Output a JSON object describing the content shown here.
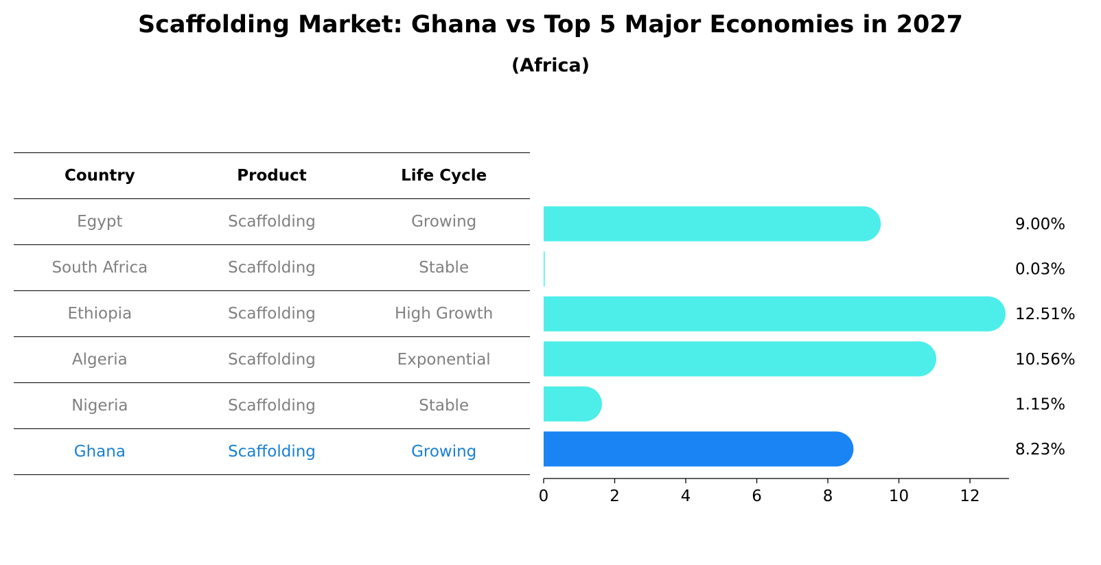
{
  "title": "Scaffolding Market: Ghana vs Top 5 Major Economies in 2027",
  "subtitle": "(Africa)",
  "table": {
    "headers": [
      "Country",
      "Product",
      "Life Cycle"
    ],
    "rows": [
      [
        "Egypt",
        "Scaffolding",
        "Growing"
      ],
      [
        "South Africa",
        "Scaffolding",
        "Stable"
      ],
      [
        "Ethiopia",
        "Scaffolding",
        "High Growth"
      ],
      [
        "Algeria",
        "Scaffolding",
        "Exponential"
      ],
      [
        "Nigeria",
        "Scaffolding",
        "Stable"
      ],
      [
        "Ghana",
        "Scaffolding",
        "Growing"
      ]
    ]
  },
  "chart_data": {
    "type": "bar",
    "orientation": "horizontal",
    "categories": [
      "Egypt",
      "South Africa",
      "Ethiopia",
      "Algeria",
      "Nigeria",
      "Ghana"
    ],
    "values": [
      9.0,
      0.03,
      12.51,
      10.56,
      1.15,
      8.23
    ],
    "value_labels": [
      "9.00%",
      "0.03%",
      "12.51%",
      "10.56%",
      "1.15%",
      "8.23%"
    ],
    "highlight": "Ghana",
    "xticks": [
      0,
      2,
      4,
      6,
      8,
      10,
      12
    ],
    "xlim": [
      0,
      13.1
    ],
    "colors": {
      "default": "#4deee9",
      "highlight": "#1a84f4"
    }
  }
}
